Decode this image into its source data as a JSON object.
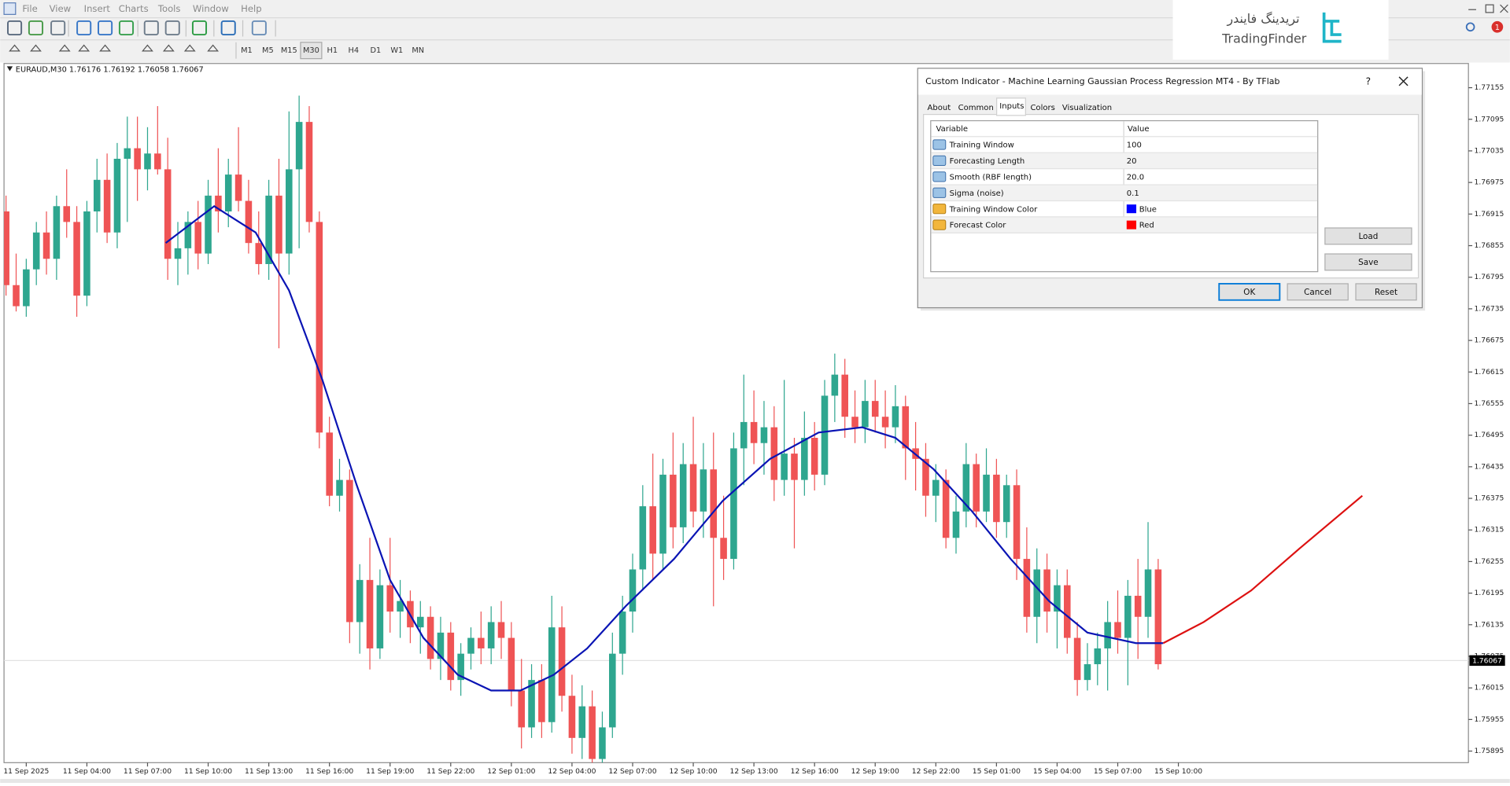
{
  "menu": [
    "File",
    "View",
    "Insert",
    "Charts",
    "Tools",
    "Window",
    "Help"
  ],
  "timeframes": [
    "M1",
    "M5",
    "M15",
    "M30",
    "H1",
    "H4",
    "D1",
    "W1",
    "MN"
  ],
  "logo": {
    "fa": "تریدینگ فایندر",
    "en": "TradingFinder"
  },
  "badge": "1",
  "chart_data": {
    "type": "candlestick",
    "title": "EURAUD,M30  1.76176 1.76192 1.76058 1.76067",
    "up_color": "#2ea68f",
    "down_color": "#ef5455",
    "xlim": [
      -0.2,
      144.7
    ],
    "ylim": [
      1.75873,
      1.77201
    ],
    "yticks": [
      1.77155,
      1.77095,
      1.77035,
      1.76975,
      1.76915,
      1.76855,
      1.76795,
      1.76735,
      1.76675,
      1.76615,
      1.76555,
      1.76495,
      1.76435,
      1.76375,
      1.76315,
      1.76255,
      1.76195,
      1.76135,
      1.76075,
      1.76015,
      1.75955,
      1.75895
    ],
    "xticks": [
      {
        "value": 2,
        "label": "11 Sep 2025"
      },
      {
        "value": 8,
        "label": "11 Sep 04:00"
      },
      {
        "value": 14,
        "label": "11 Sep 07:00"
      },
      {
        "value": 20,
        "label": "11 Sep 10:00"
      },
      {
        "value": 26,
        "label": "11 Sep 13:00"
      },
      {
        "value": 32,
        "label": "11 Sep 16:00"
      },
      {
        "value": 38,
        "label": "11 Sep 19:00"
      },
      {
        "value": 44,
        "label": "11 Sep 22:00"
      },
      {
        "value": 50,
        "label": "12 Sep 01:00"
      },
      {
        "value": 56,
        "label": "12 Sep 04:00"
      },
      {
        "value": 62,
        "label": "12 Sep 07:00"
      },
      {
        "value": 68,
        "label": "12 Sep 10:00"
      },
      {
        "value": 74,
        "label": "12 Sep 13:00"
      },
      {
        "value": 80,
        "label": "12 Sep 16:00"
      },
      {
        "value": 86,
        "label": "12 Sep 19:00"
      },
      {
        "value": 92,
        "label": "12 Sep 22:00"
      },
      {
        "value": 98,
        "label": "15 Sep 01:00"
      },
      {
        "value": 104,
        "label": "15 Sep 04:00"
      },
      {
        "value": 110,
        "label": "15 Sep 07:00"
      },
      {
        "value": 116,
        "label": "15 Sep 10:00"
      }
    ],
    "current_price": 1.76067,
    "candles": [
      [
        1.7692,
        1.7695,
        1.7676,
        1.7678
      ],
      [
        1.7678,
        1.7684,
        1.7673,
        1.7674
      ],
      [
        1.7674,
        1.7683,
        1.7672,
        1.7681
      ],
      [
        1.7681,
        1.769,
        1.7678,
        1.7688
      ],
      [
        1.7688,
        1.7692,
        1.768,
        1.7683
      ],
      [
        1.7683,
        1.7695,
        1.7679,
        1.7693
      ],
      [
        1.7693,
        1.77,
        1.7687,
        1.769
      ],
      [
        1.769,
        1.7693,
        1.7672,
        1.7676
      ],
      [
        1.7676,
        1.7694,
        1.7674,
        1.7692
      ],
      [
        1.7692,
        1.7702,
        1.7688,
        1.7698
      ],
      [
        1.7698,
        1.7703,
        1.7686,
        1.7688
      ],
      [
        1.7688,
        1.7705,
        1.7685,
        1.7702
      ],
      [
        1.7702,
        1.771,
        1.769,
        1.7704
      ],
      [
        1.7704,
        1.771,
        1.7694,
        1.77
      ],
      [
        1.77,
        1.7708,
        1.7696,
        1.7703
      ],
      [
        1.7703,
        1.7712,
        1.7699,
        1.77
      ],
      [
        1.77,
        1.7706,
        1.7679,
        1.7683
      ],
      [
        1.7683,
        1.769,
        1.7678,
        1.7685
      ],
      [
        1.7685,
        1.7692,
        1.768,
        1.769
      ],
      [
        1.769,
        1.7694,
        1.7681,
        1.7684
      ],
      [
        1.7684,
        1.7698,
        1.7682,
        1.7695
      ],
      [
        1.7695,
        1.7704,
        1.7688,
        1.7692
      ],
      [
        1.7692,
        1.7702,
        1.7689,
        1.7699
      ],
      [
        1.7699,
        1.7708,
        1.7692,
        1.7694
      ],
      [
        1.7694,
        1.7698,
        1.7684,
        1.7686
      ],
      [
        1.7686,
        1.7692,
        1.768,
        1.7682
      ],
      [
        1.7682,
        1.7698,
        1.7679,
        1.7695
      ],
      [
        1.7695,
        1.7702,
        1.7666,
        1.7684
      ],
      [
        1.7684,
        1.7711,
        1.768,
        1.77
      ],
      [
        1.77,
        1.7714,
        1.7685,
        1.7709
      ],
      [
        1.7709,
        1.7712,
        1.7688,
        1.769
      ],
      [
        1.769,
        1.7692,
        1.7647,
        1.765
      ],
      [
        1.765,
        1.7653,
        1.7636,
        1.7638
      ],
      [
        1.7638,
        1.7645,
        1.7635,
        1.7641
      ],
      [
        1.7641,
        1.7643,
        1.761,
        1.7614
      ],
      [
        1.7614,
        1.7625,
        1.7608,
        1.7622
      ],
      [
        1.7622,
        1.763,
        1.7605,
        1.7609
      ],
      [
        1.7609,
        1.7624,
        1.7607,
        1.7621
      ],
      [
        1.7621,
        1.763,
        1.7612,
        1.7616
      ],
      [
        1.7616,
        1.7622,
        1.7611,
        1.7618
      ],
      [
        1.7618,
        1.762,
        1.761,
        1.7613
      ],
      [
        1.7613,
        1.7618,
        1.7608,
        1.7615
      ],
      [
        1.7615,
        1.7617,
        1.7605,
        1.7607
      ],
      [
        1.7607,
        1.7615,
        1.7603,
        1.7612
      ],
      [
        1.7612,
        1.7614,
        1.7601,
        1.7603
      ],
      [
        1.7603,
        1.761,
        1.76,
        1.7608
      ],
      [
        1.7608,
        1.7613,
        1.7605,
        1.7611
      ],
      [
        1.7611,
        1.7616,
        1.7606,
        1.7609
      ],
      [
        1.7609,
        1.7617,
        1.7606,
        1.7614
      ],
      [
        1.7614,
        1.7618,
        1.7607,
        1.7611
      ],
      [
        1.7611,
        1.7614,
        1.7598,
        1.7601
      ],
      [
        1.7601,
        1.7607,
        1.759,
        1.7594
      ],
      [
        1.7594,
        1.7606,
        1.7592,
        1.7603
      ],
      [
        1.7603,
        1.7606,
        1.7592,
        1.7595
      ],
      [
        1.7595,
        1.7619,
        1.7593,
        1.7613
      ],
      [
        1.7613,
        1.7617,
        1.7597,
        1.76
      ],
      [
        1.76,
        1.7604,
        1.7589,
        1.7592
      ],
      [
        1.7592,
        1.7602,
        1.7588,
        1.7598
      ],
      [
        1.7598,
        1.7601,
        1.7585,
        1.7588
      ],
      [
        1.7588,
        1.7597,
        1.7587,
        1.7594
      ],
      [
        1.7594,
        1.7612,
        1.7592,
        1.7608
      ],
      [
        1.7608,
        1.7619,
        1.7604,
        1.7616
      ],
      [
        1.7616,
        1.7627,
        1.7612,
        1.7624
      ],
      [
        1.7624,
        1.764,
        1.762,
        1.7636
      ],
      [
        1.7636,
        1.7646,
        1.7622,
        1.7627
      ],
      [
        1.7627,
        1.7645,
        1.7624,
        1.7642
      ],
      [
        1.7642,
        1.765,
        1.7628,
        1.7632
      ],
      [
        1.7632,
        1.7648,
        1.7629,
        1.7644
      ],
      [
        1.7644,
        1.7653,
        1.7632,
        1.7635
      ],
      [
        1.7635,
        1.7648,
        1.763,
        1.7643
      ],
      [
        1.7643,
        1.765,
        1.7617,
        1.763
      ],
      [
        1.763,
        1.7638,
        1.7622,
        1.7626
      ],
      [
        1.7626,
        1.765,
        1.7624,
        1.7647
      ],
      [
        1.7647,
        1.7661,
        1.764,
        1.7652
      ],
      [
        1.7652,
        1.7658,
        1.7644,
        1.7648
      ],
      [
        1.7648,
        1.7656,
        1.7642,
        1.7651
      ],
      [
        1.7651,
        1.7655,
        1.7637,
        1.7641
      ],
      [
        1.7641,
        1.766,
        1.7638,
        1.7646
      ],
      [
        1.7646,
        1.7649,
        1.7628,
        1.7641
      ],
      [
        1.7641,
        1.7654,
        1.7638,
        1.7649
      ],
      [
        1.7649,
        1.7652,
        1.7639,
        1.7642
      ],
      [
        1.7642,
        1.766,
        1.764,
        1.7657
      ],
      [
        1.7657,
        1.7665,
        1.7652,
        1.7661
      ],
      [
        1.7661,
        1.7664,
        1.7649,
        1.7653
      ],
      [
        1.7653,
        1.7658,
        1.7648,
        1.7651
      ],
      [
        1.7651,
        1.766,
        1.7648,
        1.7656
      ],
      [
        1.7656,
        1.766,
        1.765,
        1.7653
      ],
      [
        1.7653,
        1.7658,
        1.7647,
        1.7651
      ],
      [
        1.7651,
        1.7659,
        1.7648,
        1.7655
      ],
      [
        1.7655,
        1.7657,
        1.7641,
        1.7647
      ],
      [
        1.7647,
        1.7652,
        1.7639,
        1.7645
      ],
      [
        1.7645,
        1.7648,
        1.7634,
        1.7638
      ],
      [
        1.7638,
        1.7644,
        1.7633,
        1.7641
      ],
      [
        1.7641,
        1.7643,
        1.7628,
        1.763
      ],
      [
        1.763,
        1.7638,
        1.7627,
        1.7635
      ],
      [
        1.7635,
        1.7648,
        1.7632,
        1.7644
      ],
      [
        1.7644,
        1.7646,
        1.7632,
        1.7635
      ],
      [
        1.7635,
        1.7647,
        1.7633,
        1.7642
      ],
      [
        1.7642,
        1.7645,
        1.763,
        1.7633
      ],
      [
        1.7633,
        1.7642,
        1.763,
        1.764
      ],
      [
        1.764,
        1.7643,
        1.7622,
        1.7626
      ],
      [
        1.7626,
        1.7632,
        1.7612,
        1.7615
      ],
      [
        1.7615,
        1.7628,
        1.761,
        1.7624
      ],
      [
        1.7624,
        1.7627,
        1.7612,
        1.7616
      ],
      [
        1.7616,
        1.7624,
        1.7609,
        1.7621
      ],
      [
        1.7621,
        1.7624,
        1.7608,
        1.7611
      ],
      [
        1.7611,
        1.7614,
        1.76,
        1.7603
      ],
      [
        1.7603,
        1.761,
        1.7601,
        1.7606
      ],
      [
        1.7606,
        1.7612,
        1.7602,
        1.7609
      ],
      [
        1.7609,
        1.7618,
        1.7601,
        1.7614
      ],
      [
        1.7614,
        1.762,
        1.7608,
        1.7611
      ],
      [
        1.7611,
        1.7622,
        1.7602,
        1.7619
      ],
      [
        1.7619,
        1.7626,
        1.7607,
        1.7615
      ],
      [
        1.7615,
        1.7633,
        1.7611,
        1.7624
      ],
      [
        1.7624,
        1.7626,
        1.7605,
        1.7606
      ]
    ],
    "lines": [
      {
        "color": "#0a14b4",
        "x": [
          15.8,
          20.6,
          24.7,
          28,
          31.3,
          34.7,
          38,
          41.3,
          44.7,
          48,
          50.9,
          54.2,
          57.5,
          61.3,
          66.1,
          70.9,
          75.6,
          80.4,
          84.7,
          88,
          91.8,
          95.6,
          99.4,
          103.2,
          107,
          111.8,
          114.5
        ],
        "values": [
          1.7686,
          1.7693,
          1.7688,
          1.7677,
          1.766,
          1.764,
          1.7622,
          1.7611,
          1.7604,
          1.7601,
          1.7601,
          1.7604,
          1.7609,
          1.7617,
          1.7626,
          1.7637,
          1.7645,
          1.765,
          1.7651,
          1.7649,
          1.7643,
          1.7635,
          1.7626,
          1.7618,
          1.7612,
          1.761,
          1.761
        ]
      },
      {
        "color": "#dd1111",
        "x": [
          114.5,
          118.5,
          123.2,
          128,
          134.2
        ],
        "values": [
          1.761,
          1.7614,
          1.762,
          1.7628,
          1.7638
        ]
      }
    ]
  },
  "dialog": {
    "title": "Custom Indicator - Machine Learning Gaussian Process Regression MT4 - By TFlab",
    "help": "?",
    "tabs": [
      "About",
      "Common",
      "Inputs",
      "Colors",
      "Visualization"
    ],
    "active_tab": 2,
    "table": {
      "header": [
        "Variable",
        "Value"
      ],
      "rows": [
        {
          "variable": "Training Window",
          "value": "100"
        },
        {
          "variable": "Forecasting Length",
          "value": "20"
        },
        {
          "variable": "Smooth (RBF length)",
          "value": "20.0"
        },
        {
          "variable": "Sigma (noise)",
          "value": "0.1"
        },
        {
          "variable": "Training Window Color",
          "value": "Blue",
          "swatch": "#0000ff"
        },
        {
          "variable": "Forecast Color",
          "value": "Red",
          "swatch": "#ff0000"
        }
      ]
    },
    "side_buttons": [
      "Load",
      "Save"
    ],
    "buttons": [
      "OK",
      "Cancel",
      "Reset"
    ]
  }
}
